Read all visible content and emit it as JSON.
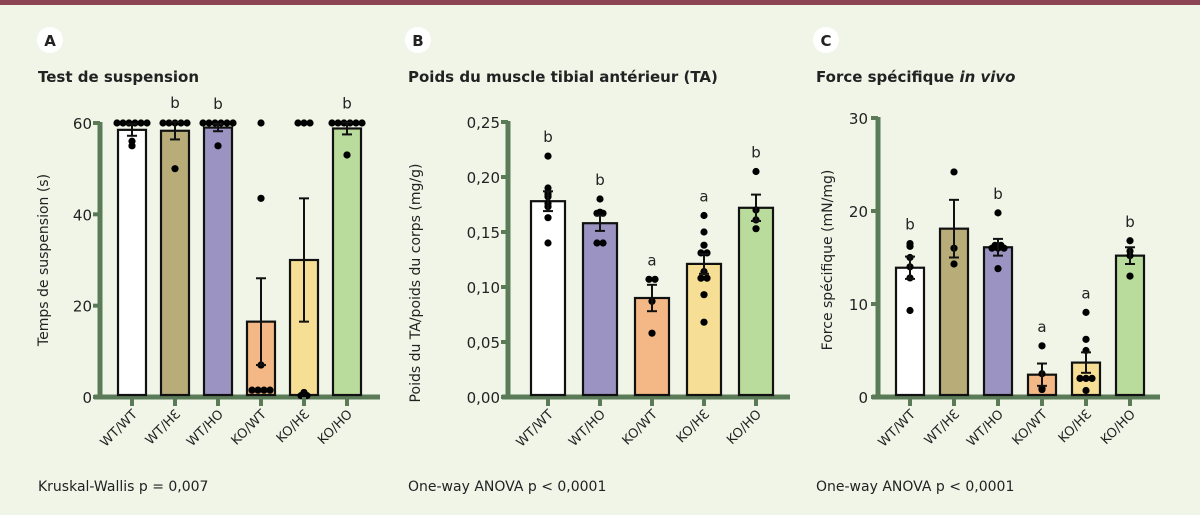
{
  "colors": {
    "top_bar": "#8c4552",
    "background": "#f0f5e8",
    "axis": "#5a7a58",
    "groups": {
      "WT/WT": "#ffffff",
      "WT/HE": "#b8ad78",
      "WT/HO": "#9b93c2",
      "KO/WT": "#f4b886",
      "KO/HE": "#f6de94",
      "KO/HO": "#b9dc9c"
    }
  },
  "chart_data": [
    {
      "panel": "A",
      "type": "bar",
      "title": "Test de suspension",
      "title_italic": "",
      "ylabel": "Temps de suspension (s)",
      "xlabel": "",
      "ylim": [
        0,
        60
      ],
      "yticks": [
        0,
        20,
        40,
        60
      ],
      "ytick_labels": [
        "0",
        "20",
        "40",
        "60"
      ],
      "categories": [
        "WT/WT",
        "WT/HE",
        "WT/HO",
        "KO/WT",
        "KO/HE",
        "KO/HO"
      ],
      "category_labels": [
        "WT/WT",
        "WT/HƐ",
        "WT/HO",
        "KO/WT",
        "KO/HƐ",
        "KO/HO"
      ],
      "values": [
        58.5,
        58.3,
        59.0,
        16.5,
        30.0,
        58.8
      ],
      "sem": [
        1.3,
        1.9,
        0.8,
        9.5,
        13.5,
        1.3
      ],
      "significance": [
        "",
        "b",
        "b",
        "",
        "",
        "b"
      ],
      "points": [
        [
          60,
          60,
          60,
          60,
          60,
          60,
          55,
          56
        ],
        [
          60,
          60,
          60,
          60,
          60,
          50
        ],
        [
          60,
          60,
          60,
          60,
          60,
          60,
          55
        ],
        [
          60,
          43.5,
          7,
          1.5,
          1.5,
          1.5,
          1.5
        ],
        [
          60,
          60,
          60,
          1,
          0.3,
          0.3
        ],
        [
          60,
          60,
          60,
          60,
          60,
          60,
          53
        ]
      ],
      "annotation": "Kruskal-Wallis p = 0,007"
    },
    {
      "panel": "B",
      "type": "bar",
      "title": "Poids du muscle tibial antérieur (TA)",
      "title_italic": "",
      "ylabel": "Poids du TA/poids du corps (mg/g)",
      "xlabel": "",
      "ylim": [
        0,
        0.25
      ],
      "yticks": [
        0,
        0.05,
        0.1,
        0.15,
        0.2,
        0.25
      ],
      "ytick_labels": [
        "0,00",
        "0,05",
        "0,10",
        "0,15",
        "0,20",
        "0,25"
      ],
      "categories": [
        "WT/WT",
        "WT/HO",
        "KO/WT",
        "KO/HE",
        "KO/HO"
      ],
      "category_labels": [
        "WT/WT",
        "WT/HO",
        "KO/WT",
        "KO/HƐ",
        "KO/HO"
      ],
      "values": [
        0.178,
        0.158,
        0.09,
        0.121,
        0.172
      ],
      "sem": [
        0.009,
        0.007,
        0.012,
        0.009,
        0.012
      ],
      "significance": [
        "b",
        "b",
        "a",
        "a",
        "b"
      ],
      "points": [
        [
          0.219,
          0.19,
          0.186,
          0.184,
          0.182,
          0.176,
          0.173,
          0.163,
          0.14
        ],
        [
          0.18,
          0.167,
          0.167,
          0.168,
          0.14,
          0.14
        ],
        [
          0.107,
          0.107,
          0.087,
          0.058
        ],
        [
          0.165,
          0.15,
          0.138,
          0.131,
          0.131,
          0.114,
          0.108,
          0.108,
          0.093,
          0.068
        ],
        [
          0.205,
          0.17,
          0.161,
          0.153
        ]
      ],
      "annotation": "One-way ANOVA p < 0,0001"
    },
    {
      "panel": "C",
      "type": "bar",
      "title": "Force spécifique ",
      "title_italic": "in vivo",
      "ylabel": "Force spécifique (mN/mg)",
      "xlabel": "",
      "ylim": [
        0,
        30
      ],
      "yticks": [
        0,
        10,
        20,
        30
      ],
      "ytick_labels": [
        "0",
        "10",
        "20",
        "30"
      ],
      "categories": [
        "WT/WT",
        "WT/HE",
        "WT/HO",
        "KO/WT",
        "KO/HE",
        "KO/HO"
      ],
      "category_labels": [
        "WT/WT",
        "WT/HƐ",
        "WT/HO",
        "KO/WT",
        "KO/HƐ",
        "KO/HO"
      ],
      "values": [
        13.9,
        18.1,
        16.1,
        2.4,
        3.7,
        15.2
      ],
      "sem": [
        1.2,
        3.1,
        0.9,
        1.2,
        1.1,
        0.9
      ],
      "significance": [
        "b",
        "",
        "b",
        "a",
        "a",
        "b"
      ],
      "points": [
        [
          16.2,
          16.5,
          15.0,
          14.0,
          12.8,
          9.3
        ],
        [
          24.2,
          16.0,
          14.3
        ],
        [
          19.8,
          16.3,
          16.3,
          16.0,
          16.0,
          16.0,
          13.8
        ],
        [
          5.5,
          2.5,
          0.8,
          0.9
        ],
        [
          9.1,
          6.2,
          5.0,
          2.0,
          2.0,
          2.0,
          0.7
        ],
        [
          16.8,
          15.7,
          15.2,
          13.0
        ]
      ],
      "annotation": "One-way ANOVA p < 0,0001"
    }
  ]
}
